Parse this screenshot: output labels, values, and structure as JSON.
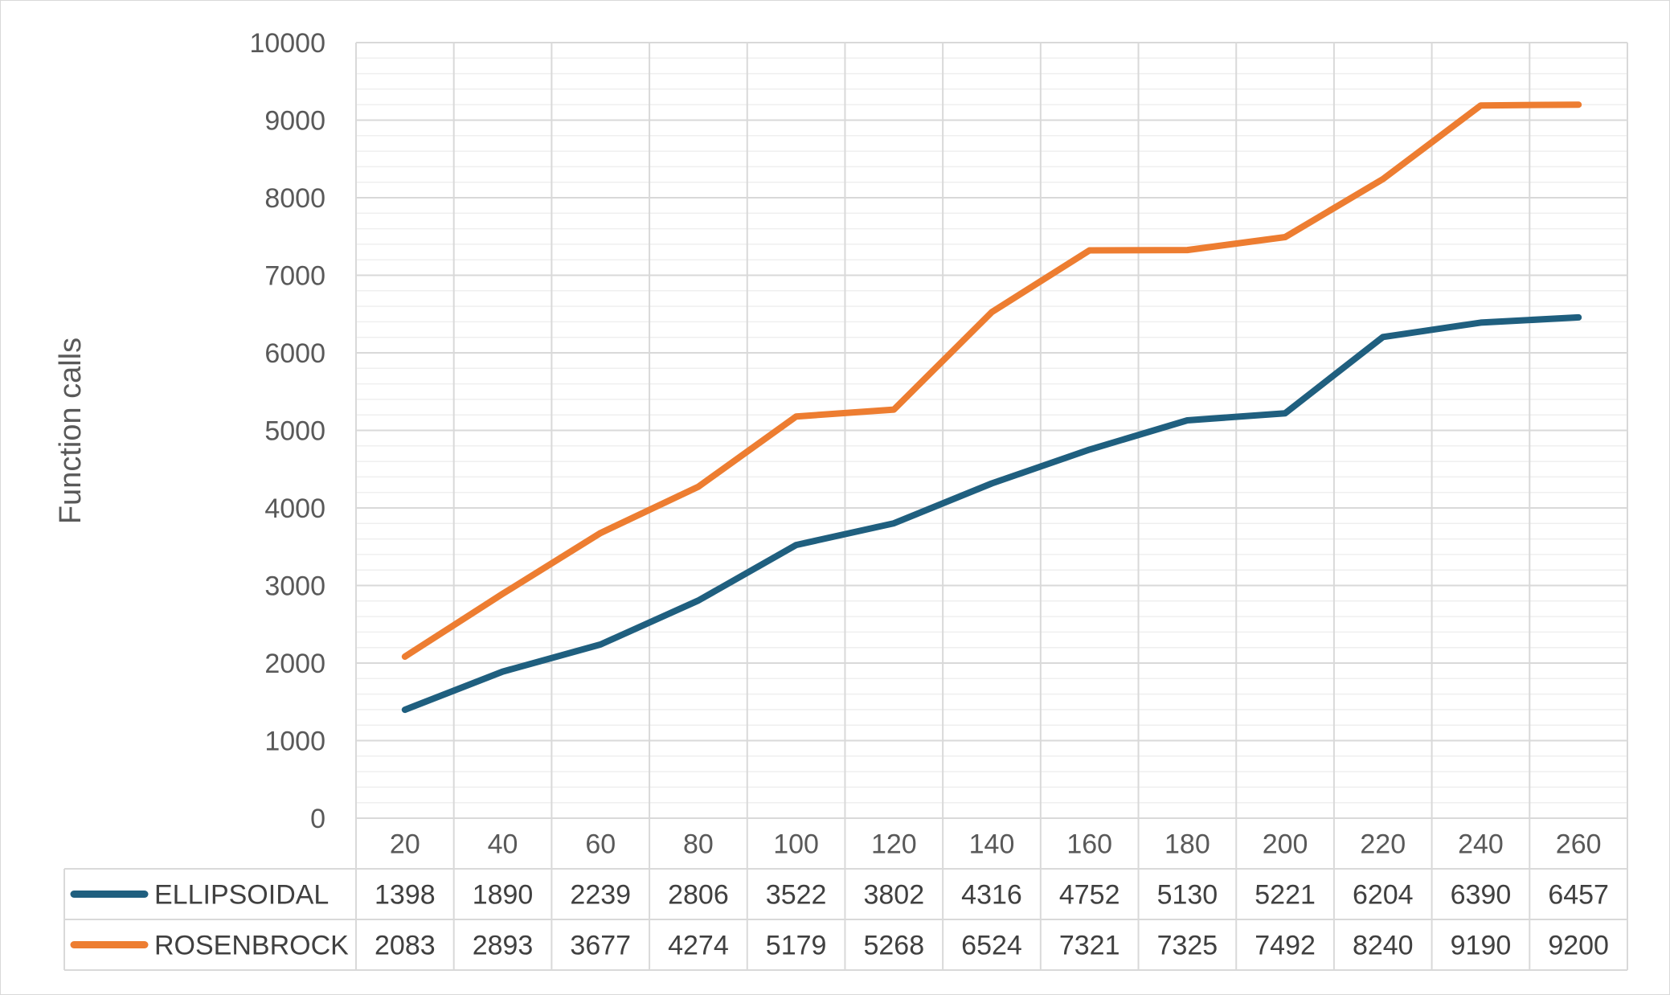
{
  "chart_data": {
    "type": "line",
    "title": "",
    "xlabel": "",
    "ylabel": "Function calls",
    "ylim": [
      0,
      10000
    ],
    "yticks": [
      "0",
      "1000",
      "2000",
      "3000",
      "4000",
      "5000",
      "6000",
      "7000",
      "8000",
      "9000",
      "10000"
    ],
    "categories": [
      "20",
      "40",
      "60",
      "80",
      "100",
      "120",
      "140",
      "160",
      "180",
      "200",
      "220",
      "240",
      "260"
    ],
    "grid": true,
    "legend": "data-table-below",
    "series": [
      {
        "name": "ELLIPSOIDAL",
        "color": "#1f5f7f",
        "values": [
          1398,
          1890,
          2239,
          2806,
          3522,
          3802,
          4316,
          4752,
          5130,
          5221,
          6204,
          6390,
          6457
        ]
      },
      {
        "name": "ROSENBROCK",
        "color": "#ed7d31",
        "values": [
          2083,
          2893,
          3677,
          4274,
          5179,
          5268,
          6524,
          7321,
          7325,
          7492,
          8240,
          9190,
          9200
        ]
      }
    ]
  }
}
